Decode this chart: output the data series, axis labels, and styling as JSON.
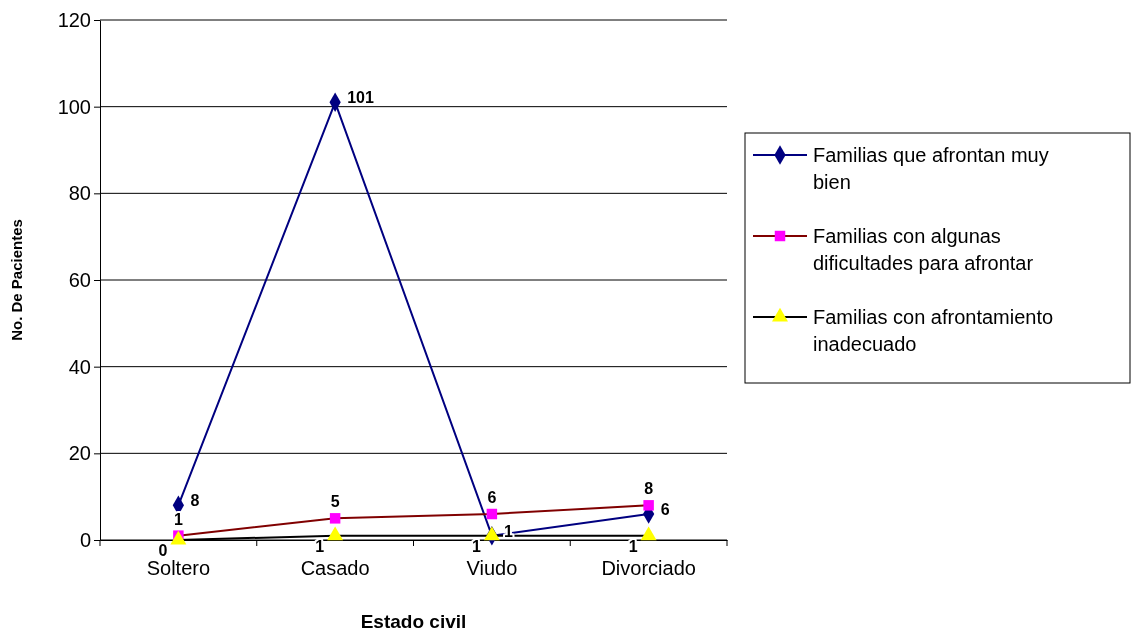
{
  "chart_data": {
    "type": "line",
    "xlabel": "Estado civil",
    "ylabel": "No. De Pacientes",
    "categories": [
      "Soltero",
      "Casado",
      "Viudo",
      "Divorciado"
    ],
    "series": [
      {
        "name": "Familias que afrontan muy bien",
        "color": "#000080",
        "colors": [
          "#000080",
          "#000080",
          "#000080",
          "#000080"
        ],
        "marker": "diamond",
        "values": [
          8,
          101,
          1,
          6
        ]
      },
      {
        "name": "Familias con algunas dificultades para afrontar",
        "color": "#800000",
        "colors": [
          "#ff00ff",
          "#ff00ff",
          "#ff00ff",
          "#ff00ff"
        ],
        "marker": "square",
        "values": [
          1,
          5,
          6,
          8
        ]
      },
      {
        "name": "Familias con afrontamiento inadecuado",
        "color": "#000000",
        "colors": [
          "#ffff00",
          "#ffff00",
          "#ffff00",
          "#ffff00"
        ],
        "marker": "triangle",
        "values": [
          0,
          1,
          1,
          1
        ]
      }
    ],
    "ylim": [
      0,
      120
    ],
    "yticks": [
      0,
      20,
      40,
      60,
      80,
      100,
      120
    ],
    "grid": "y",
    "legend": "right",
    "data_labels": true
  }
}
